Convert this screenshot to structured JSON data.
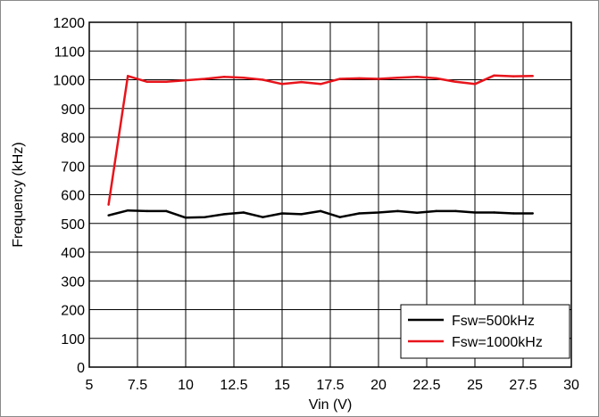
{
  "chart_data": {
    "type": "line",
    "xlabel": "Vin (V)",
    "ylabel": "Frequency (kHz)",
    "xlim": [
      5,
      30
    ],
    "ylim": [
      0,
      1200
    ],
    "xticks": [
      5,
      7.5,
      10,
      12.5,
      15,
      17.5,
      20,
      22.5,
      25,
      27.5,
      30
    ],
    "xtick_labels": [
      "5",
      "7.5",
      "10",
      "12.5",
      "15",
      "17.5",
      "20",
      "22.5",
      "25",
      "27.5",
      "30"
    ],
    "yticks": [
      0,
      100,
      200,
      300,
      400,
      500,
      600,
      700,
      800,
      900,
      1000,
      1100,
      1200
    ],
    "ytick_labels": [
      "0",
      "100",
      "200",
      "300",
      "400",
      "500",
      "600",
      "700",
      "800",
      "900",
      "1000",
      "1100",
      "1200"
    ],
    "grid": true,
    "legend_position": "bottom-right",
    "series": [
      {
        "name": "Fsw=500kHz",
        "color": "#000000",
        "x": [
          6,
          7,
          8,
          9,
          10,
          11,
          12,
          13,
          14,
          15,
          16,
          17,
          18,
          19,
          20,
          21,
          22,
          23,
          24,
          25,
          26,
          27,
          28
        ],
        "y": [
          528,
          545,
          543,
          543,
          520,
          522,
          532,
          538,
          522,
          535,
          532,
          543,
          522,
          535,
          538,
          543,
          537,
          543,
          543,
          538,
          538,
          535,
          535
        ]
      },
      {
        "name": "Fsw=1000kHz",
        "color": "#e8141b",
        "x": [
          6,
          7,
          8,
          9,
          10,
          11,
          12,
          13,
          14,
          15,
          16,
          17,
          18,
          19,
          20,
          21,
          22,
          23,
          24,
          25,
          26,
          27,
          28
        ],
        "y": [
          565,
          1013,
          993,
          993,
          998,
          1003,
          1010,
          1007,
          1000,
          985,
          992,
          985,
          1003,
          1005,
          1003,
          1007,
          1010,
          1005,
          993,
          985,
          1015,
          1012,
          1013
        ]
      }
    ]
  }
}
